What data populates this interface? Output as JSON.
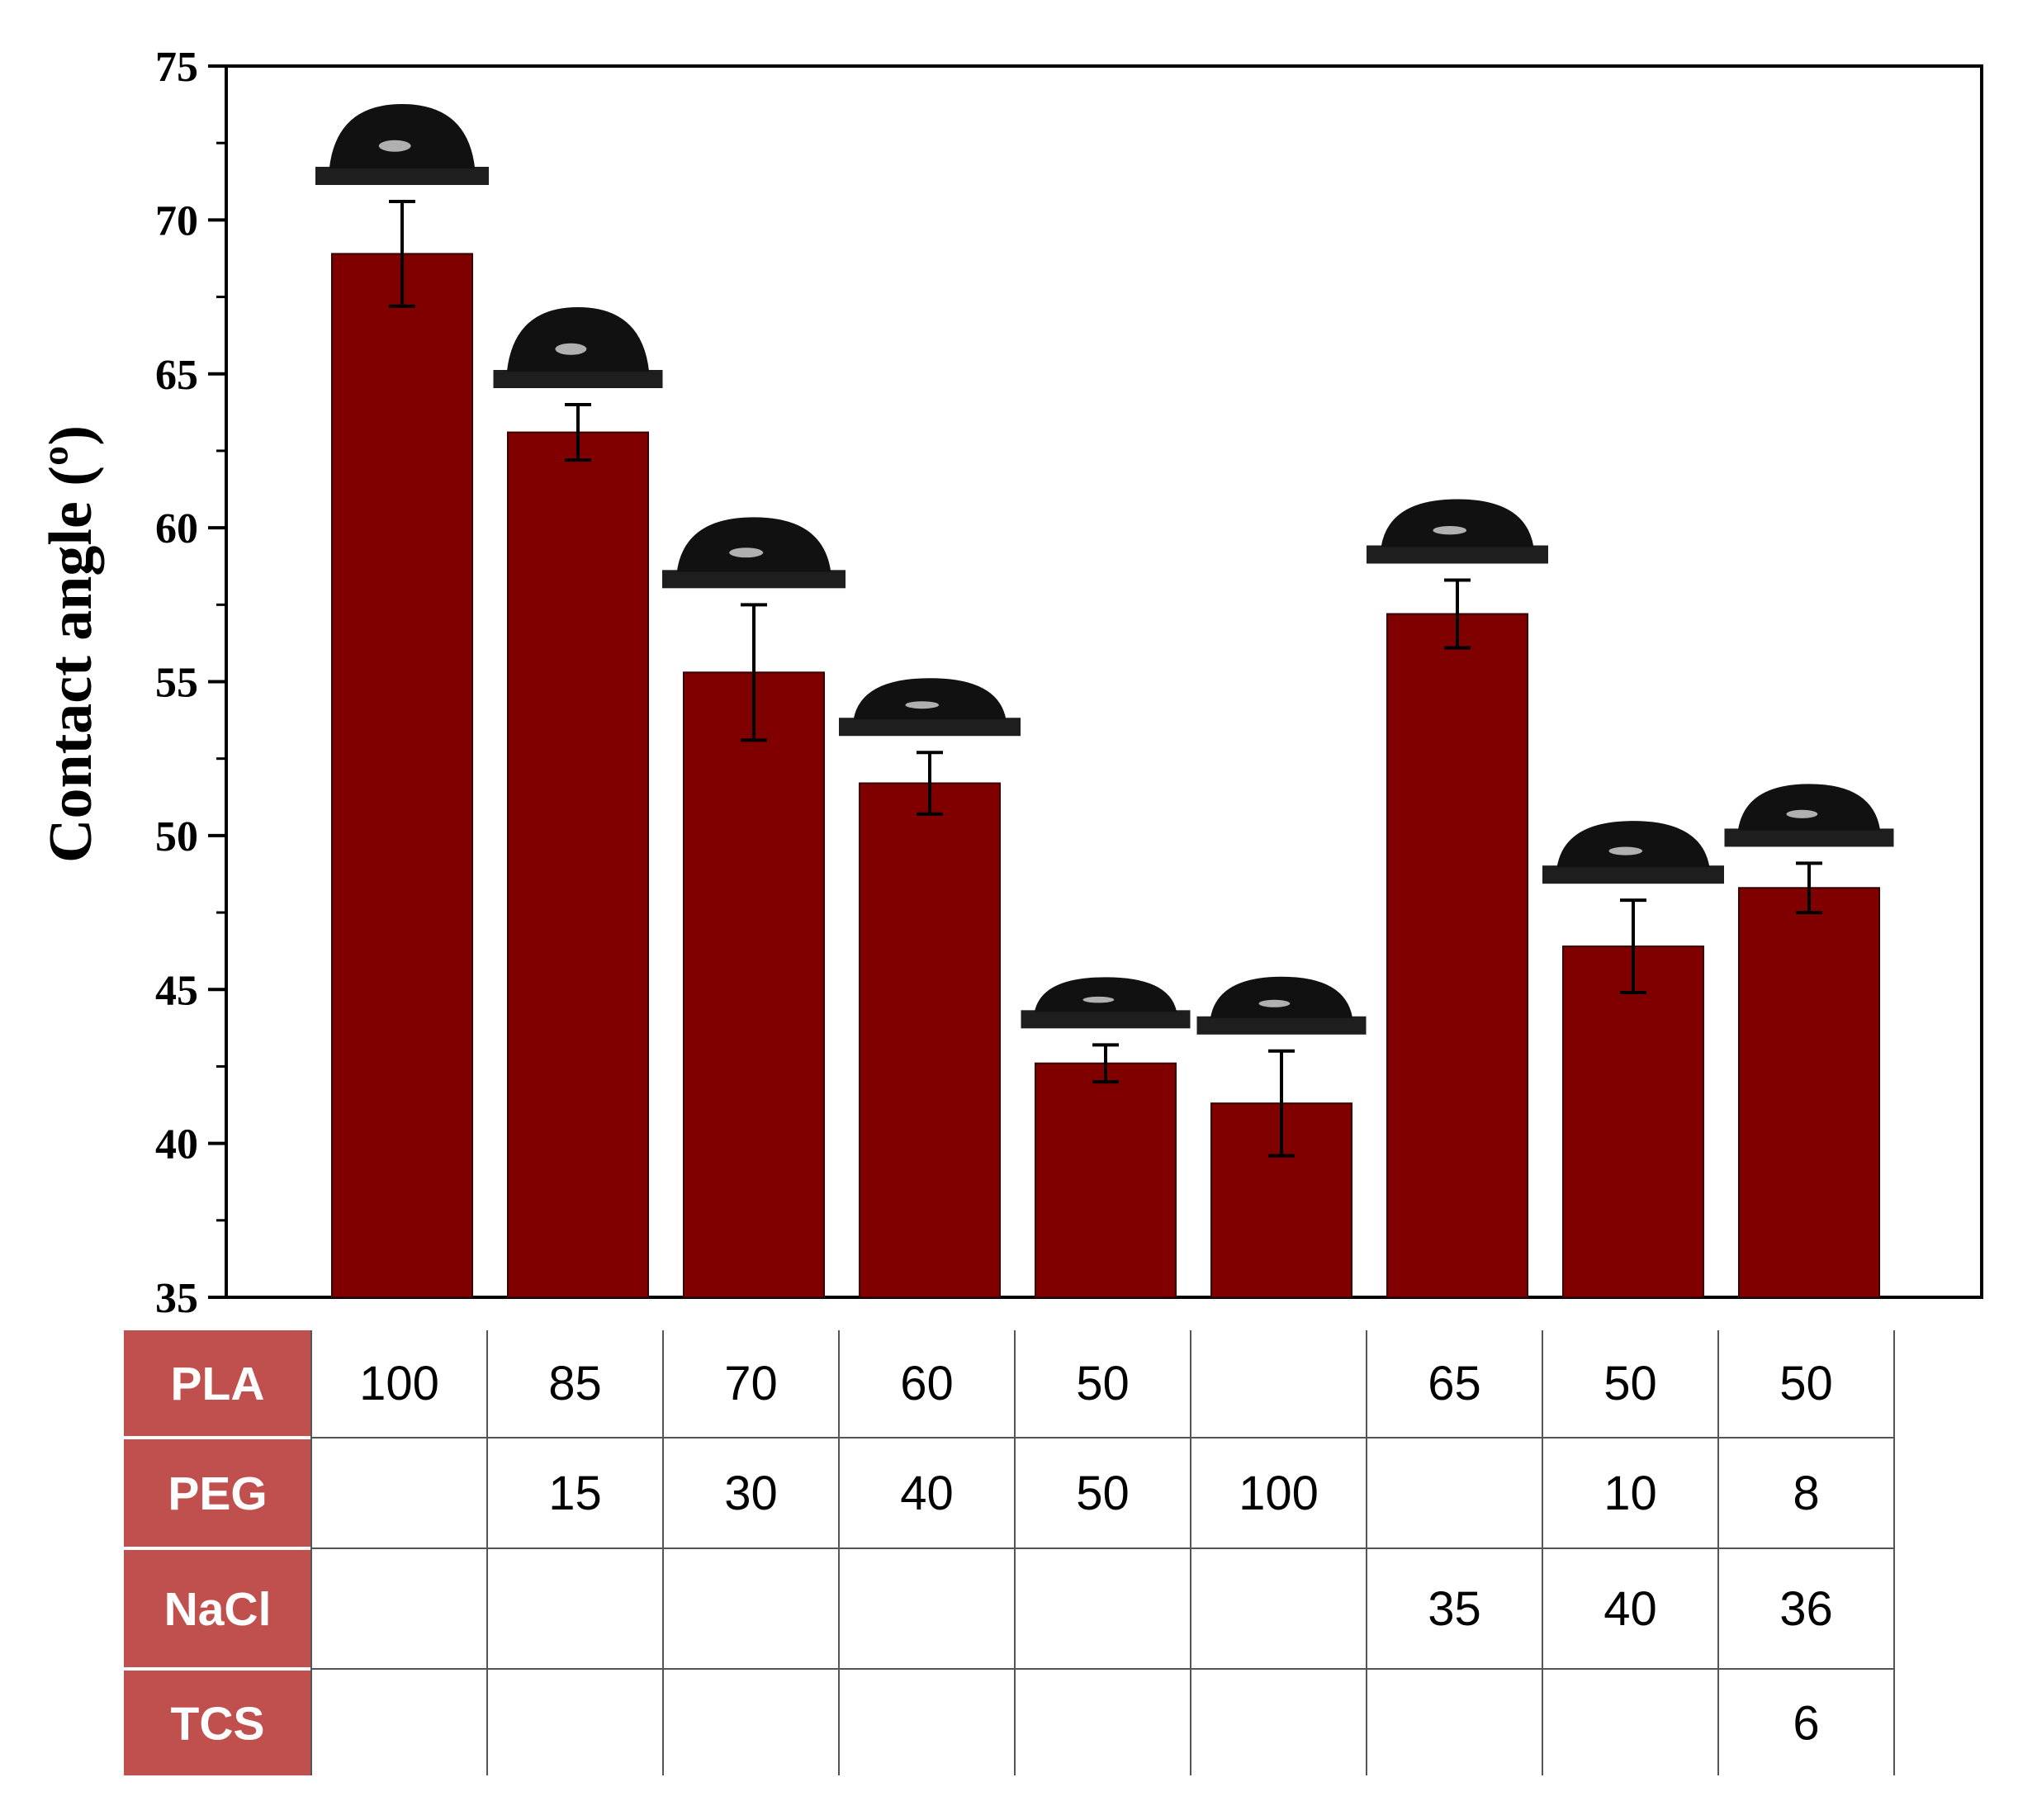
{
  "chart_data": {
    "type": "bar",
    "ylabel": "Contact angle (º)",
    "ylim": [
      35,
      75
    ],
    "yticks": [
      35,
      40,
      45,
      50,
      55,
      60,
      65,
      70,
      75
    ],
    "values": [
      68.9,
      63.1,
      55.3,
      51.7,
      42.6,
      41.3,
      57.2,
      46.4,
      48.3
    ],
    "errors": [
      1.7,
      0.9,
      2.2,
      1.0,
      0.6,
      1.7,
      1.1,
      1.5,
      0.8
    ],
    "bar_color": "#800000",
    "composition_table": {
      "rows": [
        {
          "label": "PLA",
          "values": [
            "100",
            "85",
            "70",
            "60",
            "50",
            "",
            "65",
            "50",
            "50"
          ]
        },
        {
          "label": "PEG",
          "values": [
            "",
            "15",
            "30",
            "40",
            "50",
            "100",
            "",
            "10",
            "8"
          ]
        },
        {
          "label": "NaCl",
          "values": [
            "",
            "",
            "",
            "",
            "",
            "",
            "35",
            "40",
            "36"
          ]
        },
        {
          "label": "TCS",
          "values": [
            "",
            "",
            "",
            "",
            "",
            "",
            "",
            "",
            "6"
          ]
        }
      ],
      "header_color": "#c0504d"
    }
  }
}
